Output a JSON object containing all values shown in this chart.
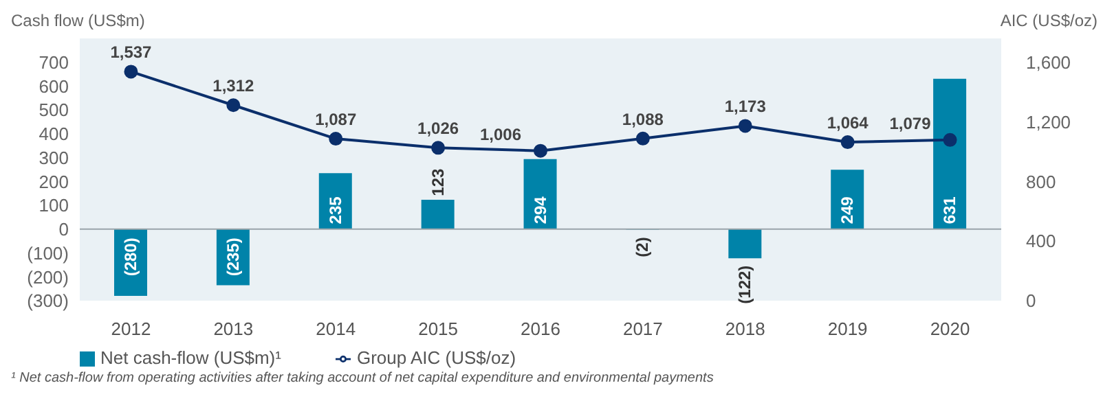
{
  "chart_data": {
    "type": "bar",
    "ylabel": "Cash flow (US$m)",
    "y2label": "AIC (US$/oz)",
    "categories": [
      "2012",
      "2013",
      "2014",
      "2015",
      "2016",
      "2017",
      "2018",
      "2019",
      "2020"
    ],
    "series": [
      {
        "name": "Net cash-flow (US$m)¹",
        "color": "#0083a9",
        "values": [
          -280,
          -235,
          235,
          123,
          294,
          -2,
          -122,
          249,
          631
        ],
        "value_labels": [
          "(280)",
          "(235)",
          "235",
          "123",
          "294",
          "(2)",
          "(122)",
          "249",
          "631"
        ]
      },
      {
        "name": "Group AIC (US$/oz)",
        "type": "line",
        "axis": "y2",
        "color": "#0b2f6b",
        "marker": "circle",
        "values": [
          1537,
          1312,
          1087,
          1026,
          1006,
          1088,
          1173,
          1064,
          1079
        ],
        "value_labels": [
          "1,537",
          "1,312",
          "1,087",
          "1,026",
          "1,006",
          "1,088",
          "1,173",
          "1,064",
          "1,079"
        ]
      }
    ],
    "ylim": [
      -300,
      800
    ],
    "yticks": [
      {
        "value": -300,
        "label": "(300)"
      },
      {
        "value": -200,
        "label": "(200)"
      },
      {
        "value": -100,
        "label": "(100)"
      },
      0,
      100,
      200,
      300,
      400,
      500,
      600,
      700
    ],
    "y2lim": [
      0,
      1760
    ],
    "y2ticks": [
      0,
      400,
      800,
      {
        "value": 1200,
        "label": "1,200"
      },
      {
        "value": 1600,
        "label": "1,600"
      }
    ],
    "ref_lines": [
      {
        "axis": "y",
        "value": 0,
        "color": "#9aa4aa"
      }
    ],
    "legend": "bottom left",
    "grid": false,
    "annotations": [
      "¹ Net cash-flow from operating activities after taking account of net capital expenditure and environmental payments"
    ]
  }
}
